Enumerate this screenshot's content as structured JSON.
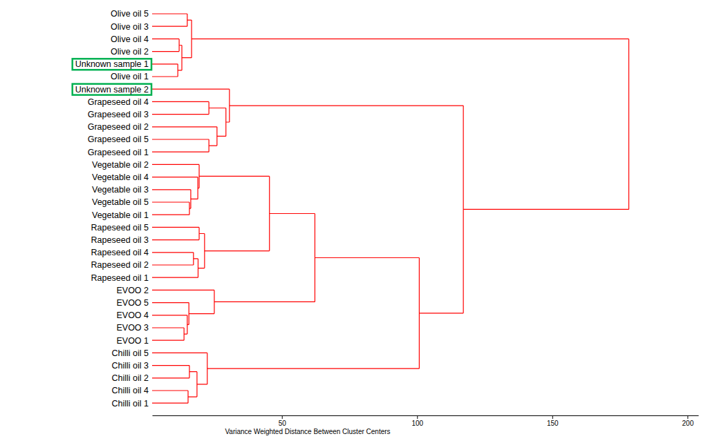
{
  "chart_data": {
    "type": "dendrogram",
    "orientation": "horizontal",
    "x_label": "Variance Weighted Distance Between Cluster Centers",
    "xlim": [
      2,
      204
    ],
    "xticks": [
      50,
      100,
      150,
      200
    ],
    "grid": false,
    "color": "#ff0000",
    "tree": {
      "height": 178.3,
      "children": [
        {
          "height": 16.6,
          "children": [
            {
              "height": 15.0,
              "children": [
                {
                  "label": "Olive oil 5"
                },
                {
                  "label": "Olive oil 3"
                }
              ]
            },
            {
              "height": 13.0,
              "children": [
                {
                  "height": 12.0,
                  "children": [
                    {
                      "label": "Olive oil 4"
                    },
                    {
                      "label": "Olive oil 2"
                    }
                  ]
                },
                {
                  "height": 11.5,
                  "children": [
                    {
                      "label": "Unknown sample 1",
                      "color": "#00b050"
                    },
                    {
                      "label": "Olive oil 1"
                    }
                  ]
                }
              ]
            }
          ]
        },
        {
          "height": 117.1,
          "children": [
            {
              "height": 30.6,
              "children": [
                {
                  "label": "Unknown sample 2",
                  "color": "#00b050"
                },
                {
                  "height": 29.3,
                  "children": [
                    {
                      "height": 23.0,
                      "children": [
                        {
                          "label": "Grapeseed oil 4"
                        },
                        {
                          "label": "Grapeseed oil 3"
                        }
                      ]
                    },
                    {
                      "height": 26.0,
                      "children": [
                        {
                          "label": "Grapeseed oil 2"
                        },
                        {
                          "height": 23.0,
                          "children": [
                            {
                              "label": "Grapeseed oil 5"
                            },
                            {
                              "label": "Grapeseed oil 1"
                            }
                          ]
                        }
                      ]
                    }
                  ]
                }
              ]
            },
            {
              "height": 100.8,
              "children": [
                {
                  "height": 62.2,
                  "children": [
                    {
                      "height": 45.4,
                      "children": [
                        {
                          "height": 19.4,
                          "children": [
                            {
                              "label": "Vegetable oil 2"
                            },
                            {
                              "height": 18.9,
                              "children": [
                                {
                                  "label": "Vegetable oil 4"
                                },
                                {
                                  "height": 16.3,
                                  "children": [
                                    {
                                      "label": "Vegetable oil 3"
                                    },
                                    {
                                      "height": 15.8,
                                      "children": [
                                        {
                                          "label": "Vegetable oil 5"
                                        },
                                        {
                                          "label": "Vegetable oil 1"
                                        }
                                      ]
                                    }
                                  ]
                                }
                              ]
                            }
                          ]
                        },
                        {
                          "height": 21.4,
                          "children": [
                            {
                              "height": 19.4,
                              "children": [
                                {
                                  "label": "Rapeseed oil 5"
                                },
                                {
                                  "label": "Rapeseed oil 3"
                                }
                              ]
                            },
                            {
                              "height": 19.0,
                              "children": [
                                {
                                  "height": 17.3,
                                  "children": [
                                    {
                                      "label": "Rapeseed oil 4"
                                    },
                                    {
                                      "label": "Rapeseed oil 2"
                                    }
                                  ]
                                },
                                {
                                  "label": "Rapeseed oil 1"
                                }
                              ]
                            }
                          ]
                        }
                      ]
                    },
                    {
                      "height": 25.0,
                      "children": [
                        {
                          "label": "EVOO 2"
                        },
                        {
                          "height": 15.6,
                          "children": [
                            {
                              "label": "EVOO 5"
                            },
                            {
                              "height": 15.0,
                              "children": [
                                {
                                  "label": "EVOO 4"
                                },
                                {
                                  "height": 13.8,
                                  "children": [
                                    {
                                      "label": "EVOO 3"
                                    },
                                    {
                                      "label": "EVOO 1"
                                    }
                                  ]
                                }
                              ]
                            }
                          ]
                        }
                      ]
                    }
                  ]
                },
                {
                  "height": 22.4,
                  "children": [
                    {
                      "label": "Chilli oil 5"
                    },
                    {
                      "height": 18.6,
                      "children": [
                        {
                          "height": 15.8,
                          "children": [
                            {
                              "label": "Chilli oil 3"
                            },
                            {
                              "label": "Chilli oil 2"
                            }
                          ]
                        },
                        {
                          "height": 15.3,
                          "children": [
                            {
                              "label": "Chilli oil 4"
                            },
                            {
                              "label": "Chilli oil 1"
                            }
                          ]
                        }
                      ]
                    }
                  ]
                }
              ]
            }
          ]
        }
      ]
    }
  }
}
